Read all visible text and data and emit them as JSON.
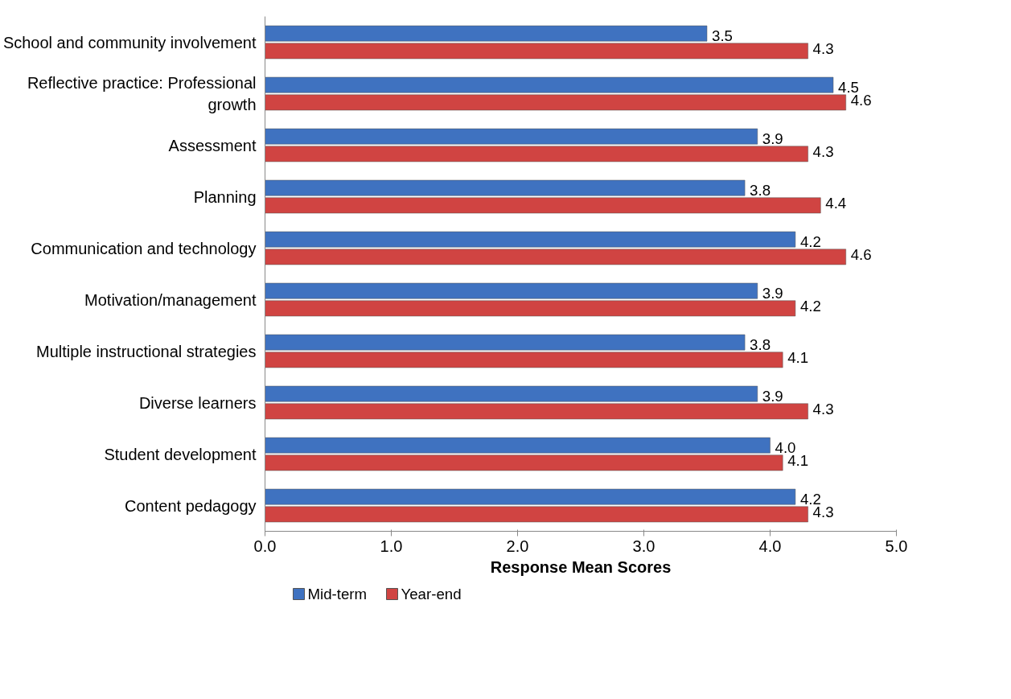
{
  "chart_data": {
    "type": "bar",
    "orientation": "horizontal",
    "xlabel": "Response Mean Scores",
    "categories": [
      "School and community involvement",
      "Reflective practice: Professional growth",
      "Assessment",
      "Planning",
      "Communication and technology",
      "Motivation/management",
      "Multiple instructional strategies",
      "Diverse learners",
      "Student development",
      "Content pedagogy"
    ],
    "series": [
      {
        "name": "Mid-term",
        "color": "#3f72c0",
        "values": [
          3.5,
          4.5,
          3.9,
          3.8,
          4.2,
          3.9,
          3.8,
          3.9,
          4.0,
          4.2
        ],
        "value_labels": [
          "3.5",
          "4.5",
          "3.9",
          "3.8",
          "4.2",
          "3.9",
          "3.8",
          "3.9",
          "4.0",
          "4.2"
        ]
      },
      {
        "name": "Year-end",
        "color": "#d04442",
        "values": [
          4.3,
          4.6,
          4.3,
          4.4,
          4.6,
          4.2,
          4.1,
          4.3,
          4.1,
          4.3
        ],
        "value_labels": [
          "4.3",
          "4.6",
          "4.3",
          "4.4",
          "4.6",
          "4.2",
          "4.1",
          "4.3",
          "4.1",
          "4.3"
        ]
      }
    ],
    "xlim": [
      0,
      5
    ],
    "xticks": [
      {
        "value": 0,
        "label": "0.0"
      },
      {
        "value": 1,
        "label": "1.0"
      },
      {
        "value": 2,
        "label": "2.0"
      },
      {
        "value": 3,
        "label": "3.0"
      },
      {
        "value": 4,
        "label": "4.0"
      },
      {
        "value": 5,
        "label": "5.0"
      }
    ],
    "grid": false,
    "legend": "bottom left"
  }
}
